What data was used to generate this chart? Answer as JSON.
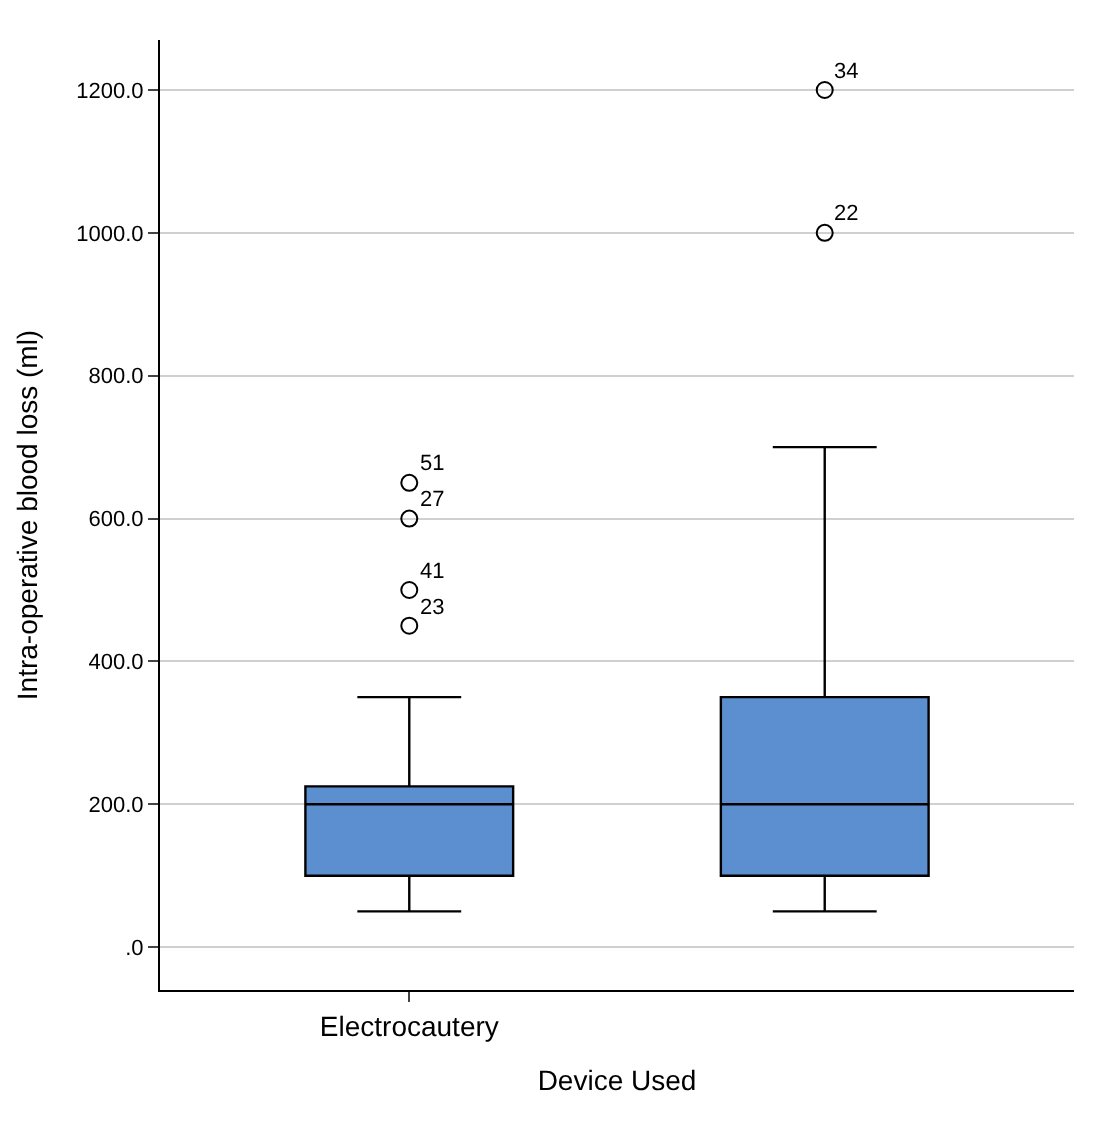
{
  "chart_data": {
    "type": "box",
    "xlabel": "Device Used",
    "ylabel": "Intra-operative blood loss (ml)",
    "categories": [
      "Electrocautery",
      null
    ],
    "boxes": [
      {
        "low": 50,
        "q1": 100,
        "median": 200,
        "q3": 225,
        "high": 350,
        "outliers": [
          650,
          600,
          500,
          450
        ]
      },
      {
        "low": 50,
        "q1": 100,
        "median": 200,
        "q3": 350,
        "high": 700,
        "outliers": [
          1200,
          1000
        ]
      }
    ],
    "color": "#5b8fd0",
    "ylim": [
      -60,
      1270
    ],
    "yticks": [
      {
        "value": 0,
        "label": ".0"
      },
      {
        "value": 200,
        "label": "200.0"
      },
      {
        "value": 400,
        "label": "400.0"
      },
      {
        "value": 600,
        "label": "600.0"
      },
      {
        "value": 800,
        "label": "800.0"
      },
      {
        "value": 1000,
        "label": "1000.0"
      },
      {
        "value": 1200,
        "label": "1200.0"
      }
    ],
    "grid": "y",
    "annotations": [
      "51",
      "27",
      "41",
      "23",
      "34",
      "22"
    ]
  }
}
